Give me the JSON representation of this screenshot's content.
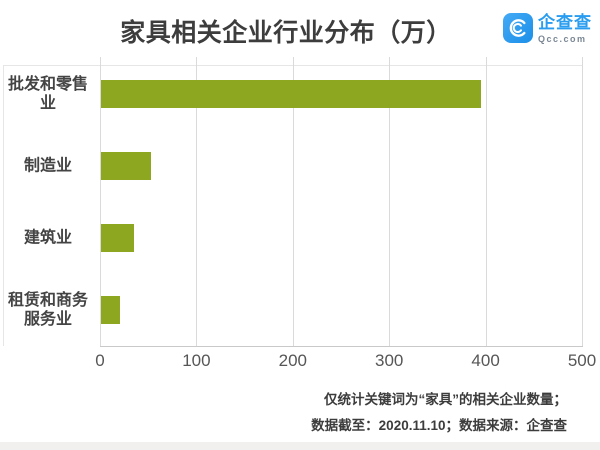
{
  "title": "家具相关企业行业分布（万）",
  "logo": {
    "brand": "企查查",
    "domain": "Qcc.com",
    "brand_color": "#2b9df0"
  },
  "chart_data": {
    "type": "bar",
    "orientation": "horizontal",
    "title": "家具相关企业行业分布（万）",
    "unit": "万",
    "categories": [
      "批发和零售业",
      "制造业",
      "建筑业",
      "租赁和商务服务业"
    ],
    "values": [
      394,
      52,
      34,
      20
    ],
    "xlim": [
      0,
      500
    ],
    "xticks": [
      "0",
      "100",
      "200",
      "300",
      "400",
      "500"
    ],
    "grid": true,
    "legend": false,
    "bar_color": "#8da720",
    "gridline_color": "#dadada"
  },
  "footnote": {
    "line1": "仅统计关键词为“家具”的相关企业数量；",
    "line2": "数据截至：2020.11.10；数据来源：企查查"
  }
}
